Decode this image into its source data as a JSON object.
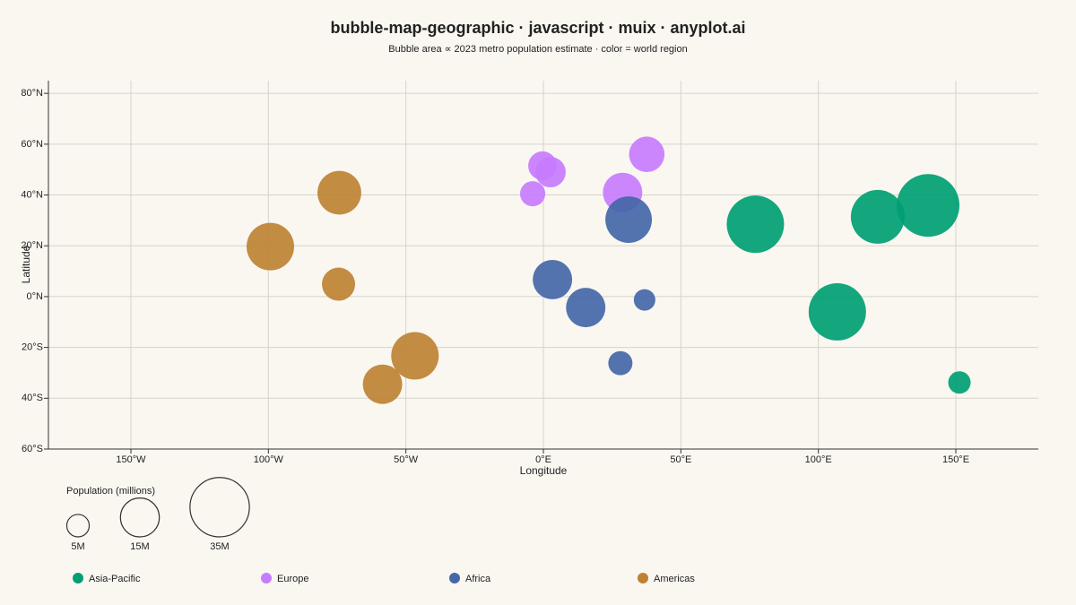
{
  "chart_data": {
    "type": "bubble",
    "title": "bubble-map-geographic · javascript · muix · anyplot.ai",
    "subtitle": "Bubble area ∝ 2023 metro population estimate · color = world region",
    "x_label": "Longitude",
    "y_label": "Latitude",
    "xlim": [
      -180,
      180
    ],
    "ylim": [
      -60,
      85
    ],
    "xticks": [
      {
        "value": -150,
        "label": "150°W"
      },
      {
        "value": -100,
        "label": "100°W"
      },
      {
        "value": -50,
        "label": "50°W"
      },
      {
        "value": 0,
        "label": "0°E"
      },
      {
        "value": 50,
        "label": "50°E"
      },
      {
        "value": 100,
        "label": "100°E"
      },
      {
        "value": 150,
        "label": "150°E"
      }
    ],
    "yticks": [
      {
        "value": -60,
        "label": "60°S"
      },
      {
        "value": -40,
        "label": "40°S"
      },
      {
        "value": -20,
        "label": "20°S"
      },
      {
        "value": 0,
        "label": "0°N"
      },
      {
        "value": 20,
        "label": "20°N"
      },
      {
        "value": 40,
        "label": "40°N"
      },
      {
        "value": 60,
        "label": "60°N"
      },
      {
        "value": 80,
        "label": "80°N"
      }
    ],
    "grid": true,
    "series": [
      {
        "name": "Asia-Pacific",
        "color": "#009e73",
        "x": [
          139.9,
          121.6,
          77.1,
          106.9,
          151.3
        ],
        "y": [
          35.9,
          31.4,
          28.5,
          -6.0,
          -33.8
        ],
        "sizes": [
          39,
          28.7,
          32.6,
          32.6,
          5
        ]
      },
      {
        "name": "Europe",
        "color": "#c77cff",
        "x": [
          -0.3,
          2.6,
          -3.9,
          28.8,
          37.6
        ],
        "y": [
          51.5,
          49.0,
          40.5,
          41.0,
          56.0
        ],
        "sizes": [
          8.2,
          9.2,
          6.3,
          15.4,
          12.5
        ]
      },
      {
        "name": "Africa",
        "color": "#4467a8",
        "x": [
          31.0,
          3.3,
          15.4,
          36.8,
          28.0
        ],
        "y": [
          30.3,
          6.7,
          -4.3,
          -1.3,
          -26.2
        ],
        "sizes": [
          21.5,
          15.4,
          15.4,
          4.6,
          5.8
        ]
      },
      {
        "name": "Americas",
        "color": "#bd8233",
        "x": [
          -74.2,
          -99.3,
          -74.5,
          -46.7,
          -58.5
        ],
        "y": [
          40.9,
          19.7,
          4.9,
          -23.3,
          -34.5
        ],
        "sizes": [
          19,
          22.4,
          10.9,
          22.4,
          15.4
        ]
      }
    ],
    "size_legend": {
      "title": "Population (millions)",
      "ticks": [
        {
          "value": 5,
          "label": "5M"
        },
        {
          "value": 15,
          "label": "15M"
        },
        {
          "value": 35,
          "label": "35M"
        }
      ]
    }
  }
}
